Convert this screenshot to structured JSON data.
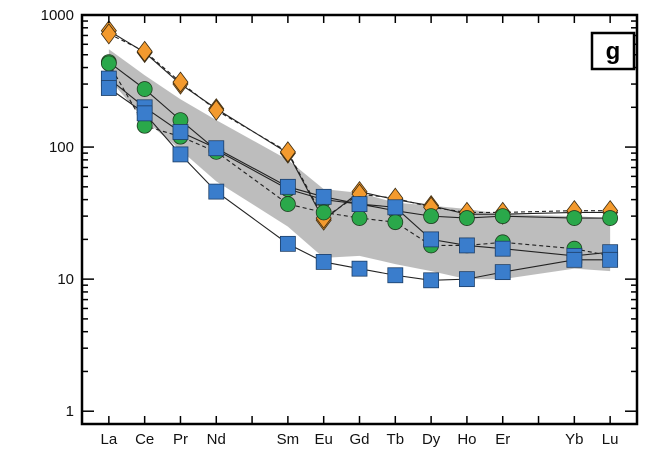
{
  "chart_data": {
    "type": "line",
    "scale_y": "log",
    "ylim": [
      0.8,
      1000
    ],
    "y_ticks": [
      1,
      10,
      100,
      1000
    ],
    "y_tick_labels": [
      "1",
      "10",
      "100",
      "1000"
    ],
    "categories": [
      "La",
      "Ce",
      "Pr",
      "Nd",
      "Sm",
      "Eu",
      "Gd",
      "Tb",
      "Dy",
      "Ho",
      "Er",
      "Yb",
      "Lu"
    ],
    "x_positions": [
      1,
      2,
      3,
      4,
      6,
      7,
      8,
      9,
      10,
      11,
      12,
      14,
      15
    ],
    "panel_label": "g",
    "grid": false,
    "shaded_range": {
      "color": "#bdbdbd",
      "lower": [
        330,
        160,
        95,
        55,
        25,
        14.5,
        15,
        13,
        11.5,
        10,
        10,
        12,
        11.5
      ],
      "upper": [
        550,
        350,
        230,
        160,
        80,
        48,
        45,
        38,
        36,
        34,
        31,
        30,
        29
      ]
    },
    "series": [
      {
        "marker": "diamond",
        "color": "#f39a2e",
        "dashed": false,
        "values": [
          760,
          520,
          300,
          195,
          90,
          28,
          46,
          40,
          36,
          31,
          31,
          32,
          32
        ]
      },
      {
        "marker": "diamond",
        "color": "#f39a2e",
        "dashed": true,
        "values": [
          720,
          530,
          310,
          190,
          92,
          29,
          44,
          41,
          35,
          32,
          32,
          33,
          33
        ]
      },
      {
        "marker": "circle",
        "color": "#2aa84a",
        "dashed": false,
        "values": [
          440,
          275,
          160,
          95,
          48,
          40,
          37,
          33,
          30,
          29,
          30,
          29,
          29
        ]
      },
      {
        "marker": "circle",
        "color": "#2aa84a",
        "dashed": true,
        "values": [
          430,
          145,
          120,
          92,
          37,
          32,
          29,
          27,
          18,
          18,
          19,
          17,
          15
        ]
      },
      {
        "marker": "square",
        "color": "#3a7dcc",
        "dashed": false,
        "values": [
          330,
          200,
          130,
          98,
          50,
          42,
          37,
          35,
          20,
          18,
          17,
          15,
          16
        ]
      },
      {
        "marker": "square",
        "color": "#3a7dcc",
        "dashed": false,
        "values": [
          280,
          180,
          88,
          46,
          18.5,
          13.5,
          12,
          10.7,
          9.8,
          10,
          11.3,
          14,
          14
        ]
      }
    ]
  }
}
